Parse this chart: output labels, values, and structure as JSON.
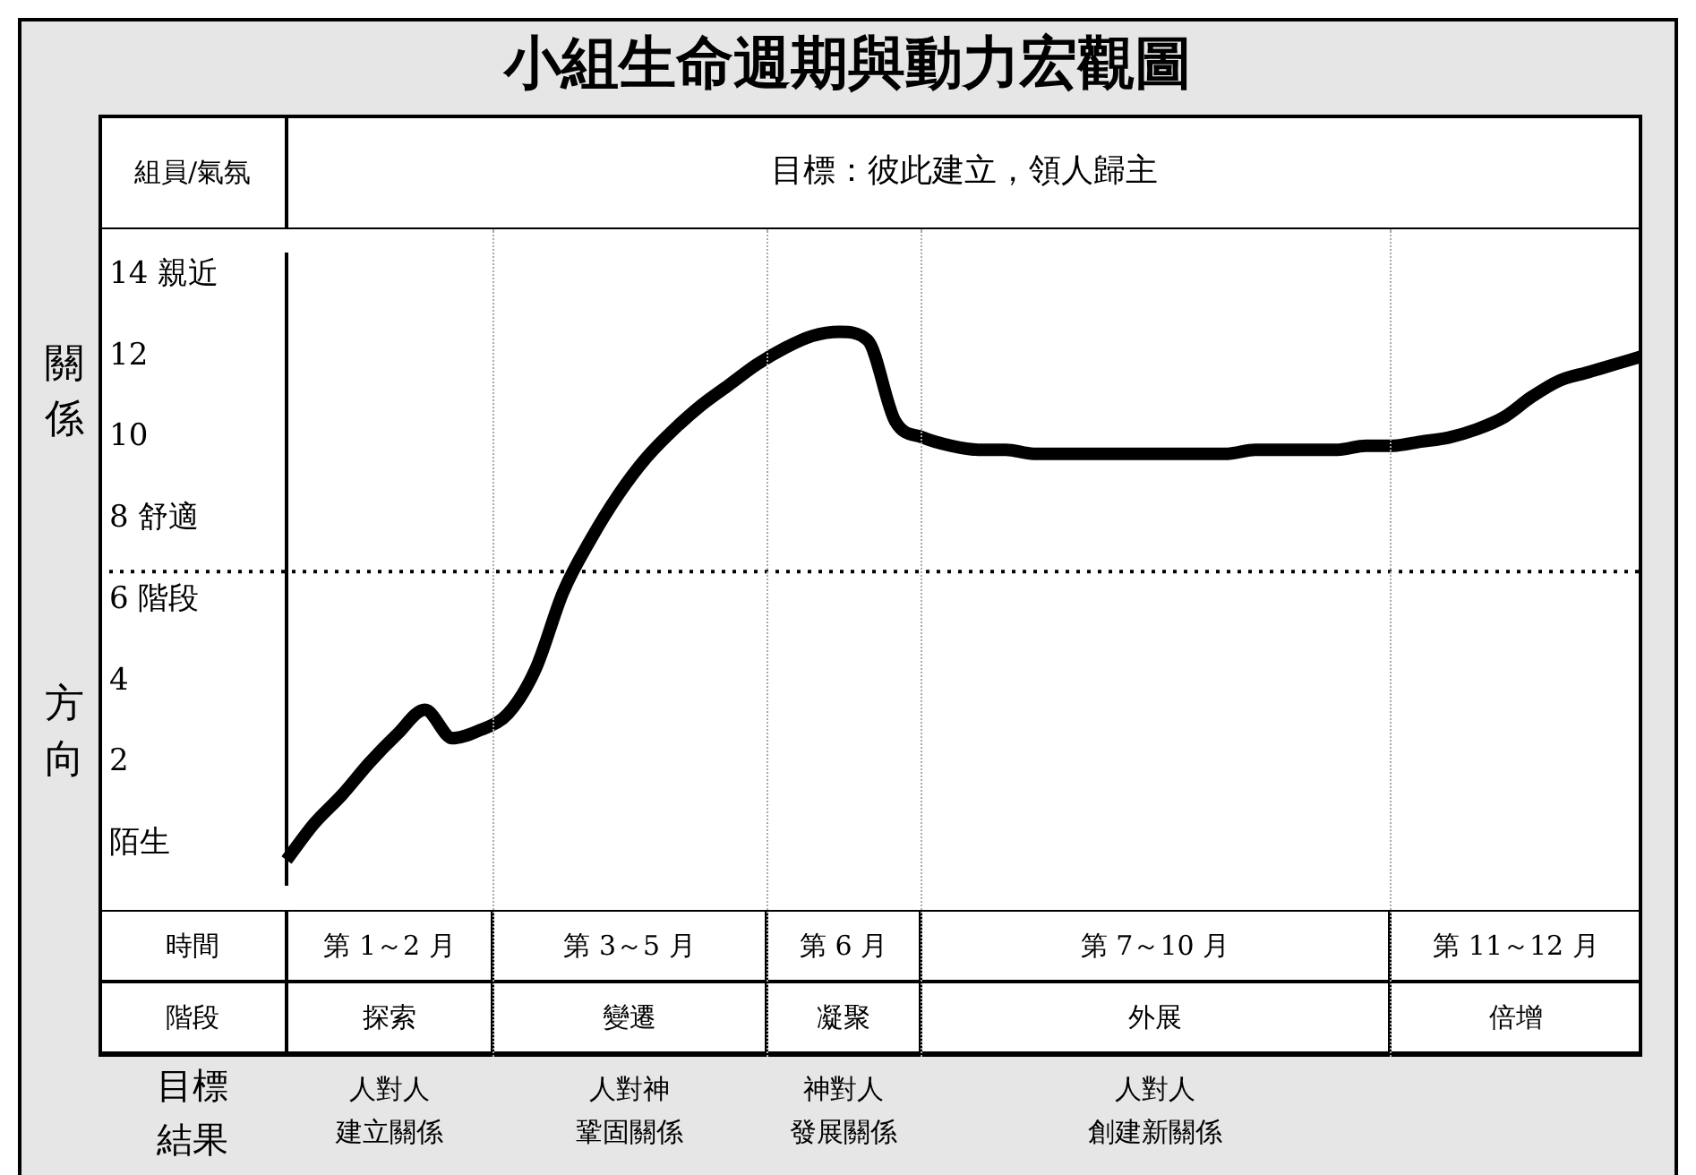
{
  "chart_data": {
    "type": "line",
    "title": "小組生命週期與動力宏觀圖",
    "categories": [
      null,
      null,
      null,
      null,
      null,
      null,
      null,
      null,
      null,
      null,
      null,
      null,
      null,
      null,
      null,
      null,
      null,
      null,
      null,
      null,
      null,
      null,
      null,
      null,
      null,
      null,
      null,
      null,
      null,
      null,
      null,
      null,
      null,
      null,
      null,
      null,
      null,
      null,
      null,
      null,
      null,
      null,
      null,
      null,
      null,
      null,
      null,
      null,
      null,
      null
    ],
    "series": [
      {
        "color": "#000000",
        "values": [
          -0.4,
          0.5,
          1.2,
          2.0,
          2.7,
          3.3,
          2.6,
          2.8,
          3.2,
          4.3,
          6.2,
          7.5,
          8.6,
          9.5,
          10.2,
          10.8,
          11.3,
          11.8,
          12.2,
          12.5,
          12.6,
          12.4,
          10.4,
          10.0,
          9.8,
          9.7,
          9.7,
          9.6,
          9.6,
          9.6,
          9.6,
          9.6,
          9.6,
          9.6,
          9.6,
          9.7,
          9.7,
          9.7,
          9.7,
          9.8,
          9.8,
          9.9,
          10.0,
          10.2,
          10.5,
          11.0,
          11.4,
          11.6,
          11.8,
          12.0
        ]
      }
    ],
    "ylim": [
      -1,
      14.5
    ],
    "yticks": [
      {
        "value": 0,
        "label": "陌生"
      },
      2,
      4,
      {
        "value": 6,
        "label": "6 階段"
      },
      {
        "value": 8,
        "label": "8 舒適"
      },
      10,
      12,
      {
        "value": 14,
        "label": "14 親近"
      }
    ],
    "ref_lines": [
      {
        "axis": "y",
        "value": 6.7,
        "line_style": "dotted",
        "color": "#000000"
      }
    ],
    "grid": false,
    "legend": false,
    "marker": "none",
    "line_style": "solid",
    "tick_labels": "y",
    "annotations": [
      "組員/氣氛",
      "目標：彼此建立，領人歸主",
      "關係",
      "方向",
      "時間",
      "第 1～2 月",
      "第 3～5 月",
      "第 6 月",
      "第 7～10 月",
      "第 11～12 月",
      "階段",
      "探索",
      "變遷",
      "凝聚",
      "外展",
      "倍增",
      "目標",
      "結果",
      "人對人",
      "建立關係",
      "人對神",
      "鞏固關係",
      "神對人",
      "發展關係",
      "人對人",
      "創建新關係"
    ]
  }
}
